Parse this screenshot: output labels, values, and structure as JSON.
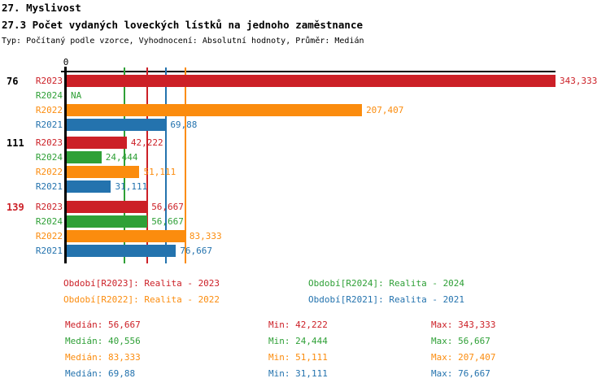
{
  "header": {
    "title": "27. Myslivost",
    "subtitle": "27.3 Počet vydaných loveckých lístků na jednoho zaměstnance",
    "meta": "Typ: Počítaný podle vzorce, Vyhodnocení: Absolutní hodnoty, Průměr: Medián"
  },
  "colors": {
    "R2023": "#cc2027",
    "R2024": "#2fa037",
    "R2022": "#fb8c0e",
    "R2021": "#2473ae",
    "axis": "#000000"
  },
  "chart_data": {
    "type": "bar",
    "orientation": "horizontal",
    "x_axis": {
      "zero_label": "0",
      "min": 0,
      "max": 343.333,
      "grid": "median-lines-only"
    },
    "series_order": [
      "R2023",
      "R2024",
      "R2022",
      "R2021"
    ],
    "groups": [
      {
        "label": "76",
        "label_color": "#000000",
        "bars": [
          {
            "series": "R2023",
            "value": 343.333,
            "display": "343,333"
          },
          {
            "series": "R2024",
            "value": null,
            "display": "NA"
          },
          {
            "series": "R2022",
            "value": 207.407,
            "display": "207,407"
          },
          {
            "series": "R2021",
            "value": 69.88,
            "display": "69,88"
          }
        ]
      },
      {
        "label": "111",
        "label_color": "#000000",
        "bars": [
          {
            "series": "R2023",
            "value": 42.222,
            "display": "42,222"
          },
          {
            "series": "R2024",
            "value": 24.444,
            "display": "24,444"
          },
          {
            "series": "R2022",
            "value": 51.111,
            "display": "51,111"
          },
          {
            "series": "R2021",
            "value": 31.111,
            "display": "31,111"
          }
        ]
      },
      {
        "label": "139",
        "label_color": "#cc2027",
        "bars": [
          {
            "series": "R2023",
            "value": 56.667,
            "display": "56,667"
          },
          {
            "series": "R2024",
            "value": 56.667,
            "display": "56,667"
          },
          {
            "series": "R2022",
            "value": 83.333,
            "display": "83,333"
          },
          {
            "series": "R2021",
            "value": 76.667,
            "display": "76,667"
          }
        ]
      }
    ],
    "median_lines": [
      {
        "series": "R2023",
        "value": 56.667
      },
      {
        "series": "R2024",
        "value": 40.556
      },
      {
        "series": "R2022",
        "value": 83.333
      },
      {
        "series": "R2021",
        "value": 69.88
      }
    ]
  },
  "legend": [
    {
      "series": "R2023",
      "text": "Období[R2023]: Realita - 2023"
    },
    {
      "series": "R2024",
      "text": "Období[R2024]: Realita - 2024"
    },
    {
      "series": "R2022",
      "text": "Období[R2022]: Realita - 2022"
    },
    {
      "series": "R2021",
      "text": "Období[R2021]: Realita - 2021"
    }
  ],
  "stats": [
    {
      "series": "R2023",
      "median": "Medián: 56,667",
      "min": "Min: 42,222",
      "max": "Max: 343,333"
    },
    {
      "series": "R2024",
      "median": "Medián: 40,556",
      "min": "Min: 24,444",
      "max": "Max: 56,667"
    },
    {
      "series": "R2022",
      "median": "Medián: 83,333",
      "min": "Min: 51,111",
      "max": "Max: 207,407"
    },
    {
      "series": "R2021",
      "median": "Medián: 69,88",
      "min": "Min: 31,111",
      "max": "Max: 76,667"
    }
  ]
}
